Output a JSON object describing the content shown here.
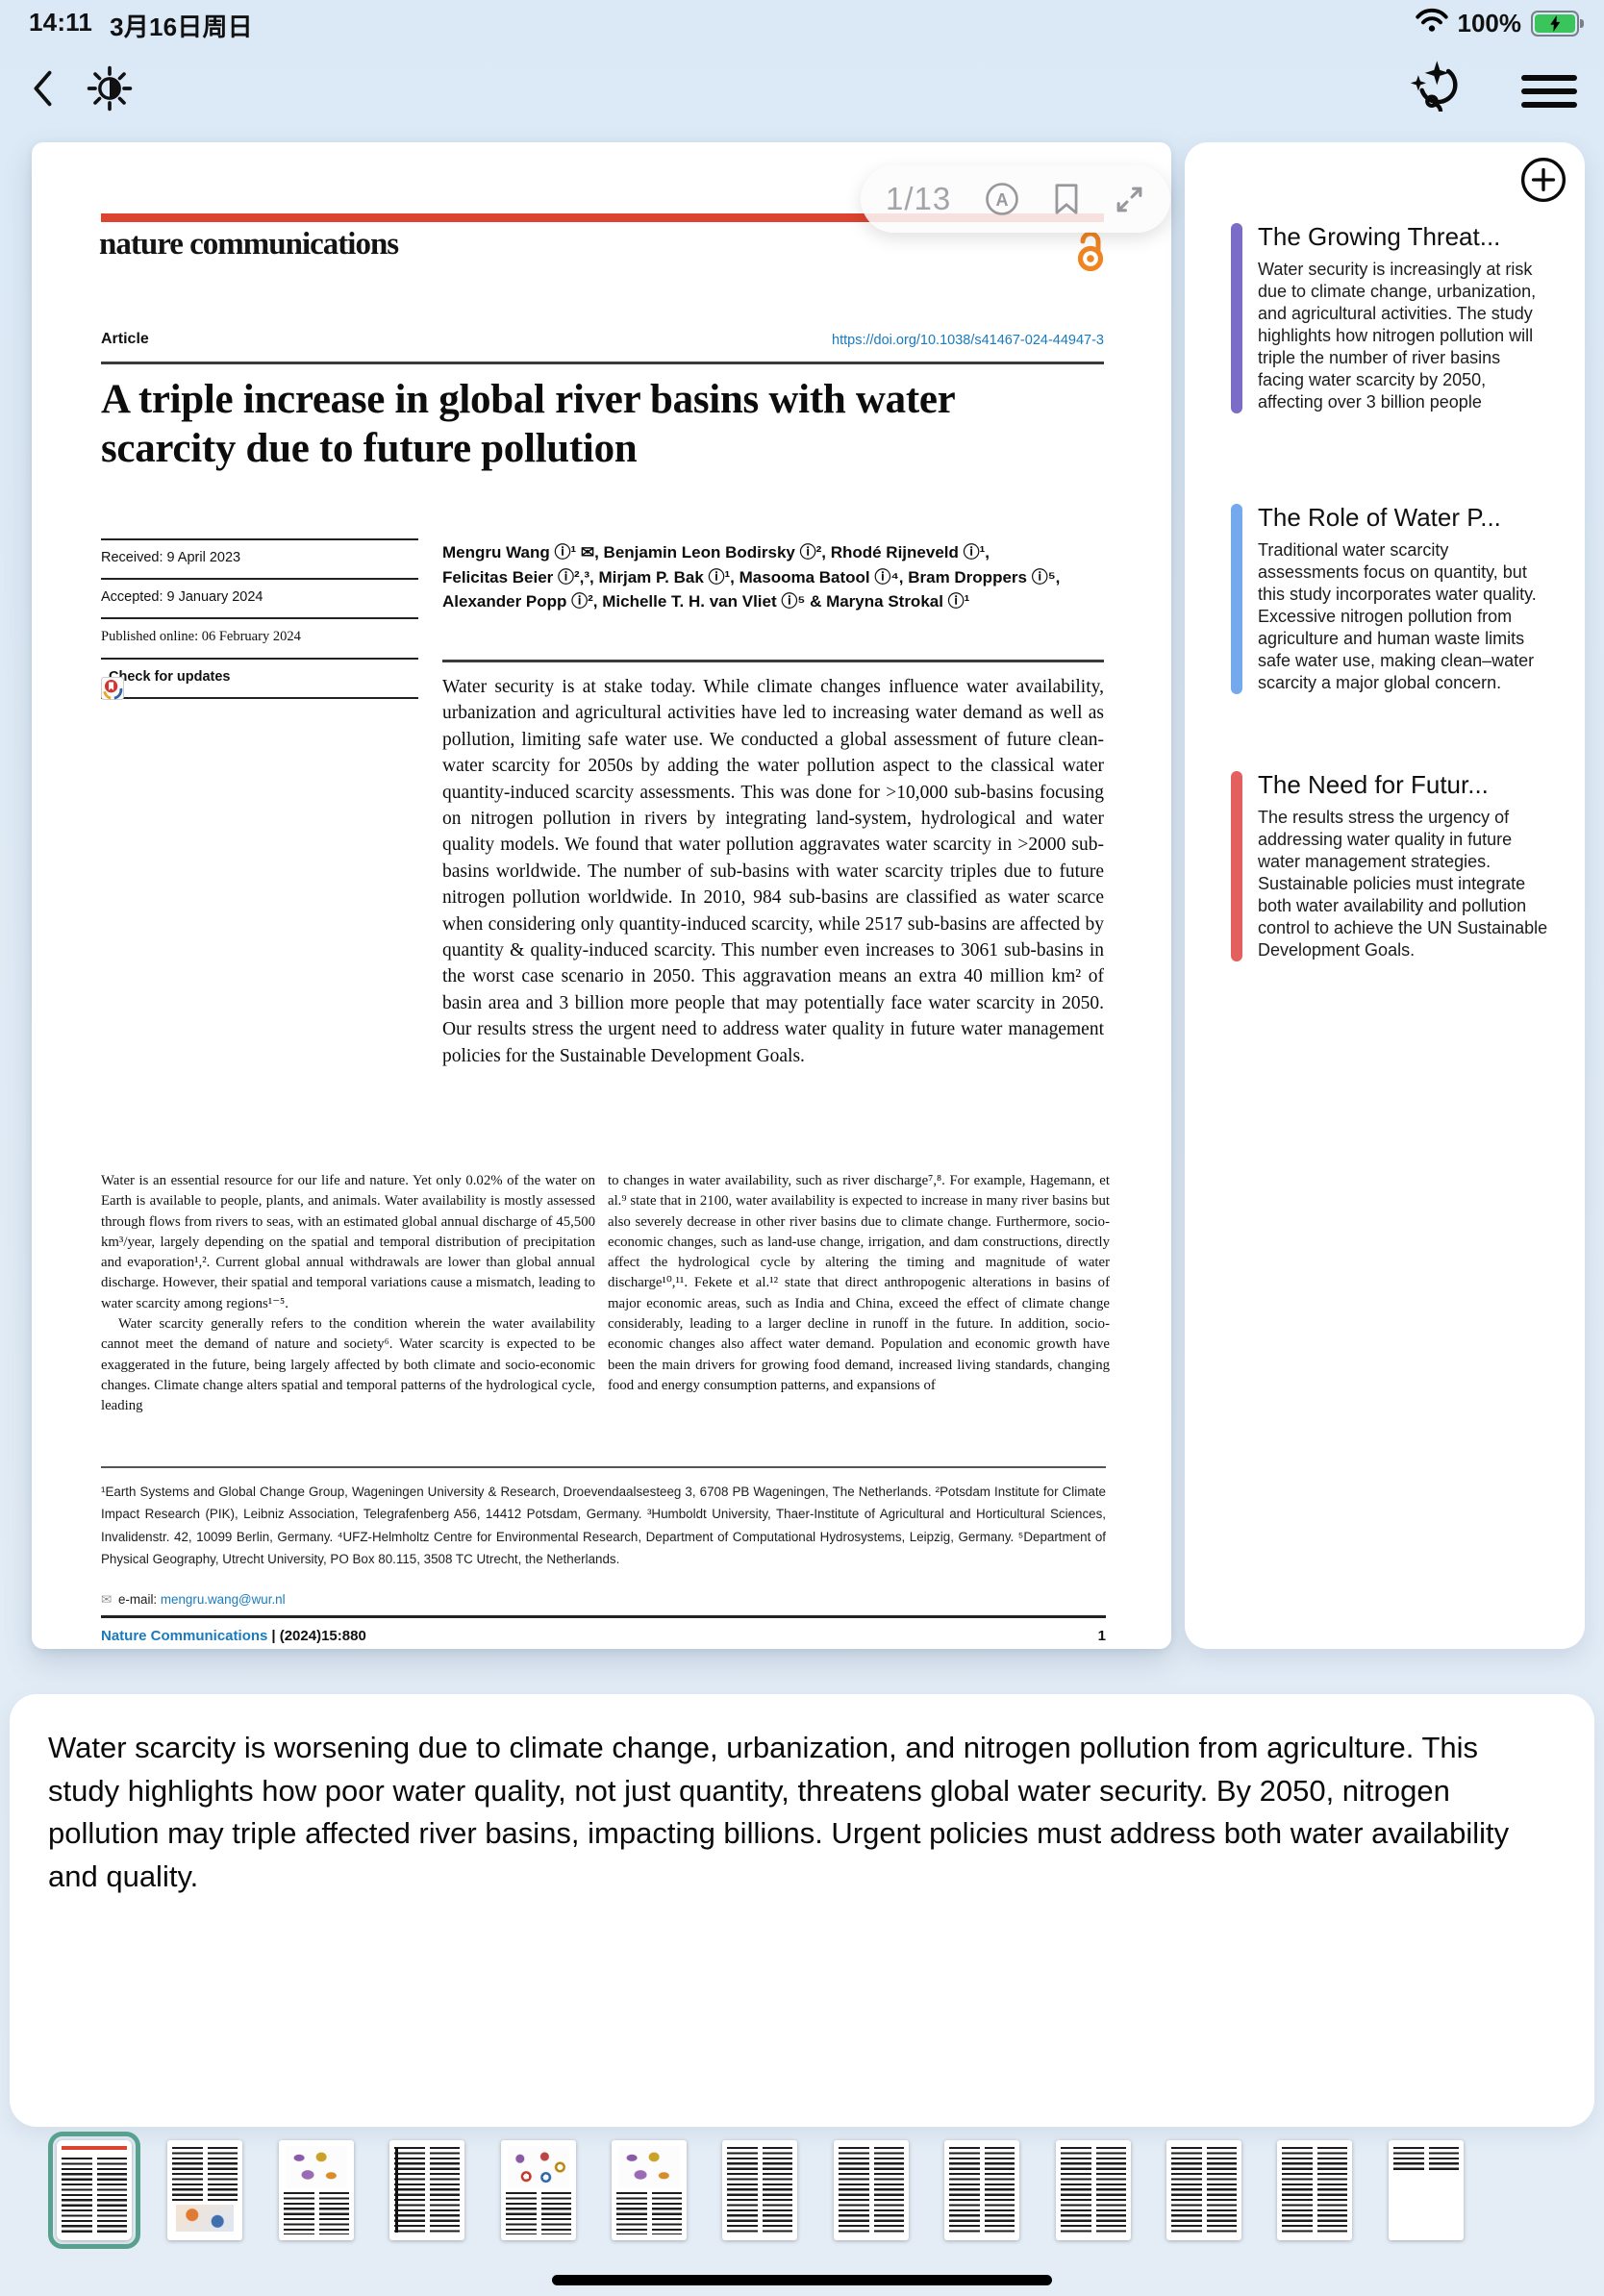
{
  "status_bar": {
    "time": "14:11",
    "date": "3月16日周日",
    "battery_percent": "100%"
  },
  "toolbar": {
    "page_indicator": "1/13"
  },
  "icons": {
    "envelope": "✉"
  },
  "colors": {
    "brand_red": "#dc4330",
    "link_blue": "#1a7abc",
    "oa_orange": "#ef8423",
    "battery_green": "#3cc45c",
    "thumb_selected": "#58a18f",
    "accent_purple": "#7b6cc8",
    "accent_blue": "#74a9ee",
    "accent_red": "#e4605e"
  },
  "paper": {
    "journal_logo": "nature communications",
    "article_label": "Article",
    "doi": "https://doi.org/10.1038/s41467-024-44947-3",
    "title": "A triple increase in global river basins with water scarcity due to future pollution",
    "received": "Received: 9 April 2023",
    "accepted": "Accepted: 9 January 2024",
    "published": "Published online: 06 February 2024",
    "check_for_updates": "Check for updates",
    "authors": "Mengru Wang ⓘ¹ ✉, Benjamin Leon Bodirsky ⓘ², Rhodé Rijneveld ⓘ¹,\nFelicitas Beier ⓘ²,³, Mirjam P. Bak ⓘ¹, Masooma Batool ⓘ⁴, Bram Droppers ⓘ⁵,\nAlexander Popp ⓘ², Michelle T. H. van Vliet ⓘ⁵ & Maryna Strokal ⓘ¹",
    "abstract": "Water security is at stake today. While climate changes influence water availability, urbanization and agricultural activities have led to increasing water demand as well as pollution, limiting safe water use. We conducted a global assessment of future clean-water scarcity for 2050s by adding the water pollution aspect to the classical water quantity-induced scarcity assessments. This was done for >10,000 sub-basins focusing on nitrogen pollution in rivers by integrating land-system, hydrological and water quality models. We found that water pollution aggravates water scarcity in >2000 sub-basins worldwide. The number of sub-basins with water scarcity triples due to future nitrogen pollution worldwide. In 2010, 984 sub-basins are classified as water scarce when considering only quantity-induced scarcity, while 2517 sub-basins are affected by quantity & quality-induced scarcity. This number even increases to 3061 sub-basins in the worst case scenario in 2050. This aggravation means an extra 40 million km² of basin area and 3 billion more people that may potentially face water scarcity in 2050. Our results stress the urgent need to address water quality in future water management policies for the Sustainable Development Goals.",
    "body_col1_p1": "Water is an essential resource for our life and nature. Yet only 0.02% of the water on Earth is available to people, plants, and animals. Water availability is mostly assessed through flows from rivers to seas, with an estimated global annual discharge of 45,500 km³/year, largely depending on the spatial and temporal distribution of precipitation and evaporation¹,². Current global annual withdrawals are lower than global annual discharge. However, their spatial and temporal variations cause a mismatch, leading to water scarcity among regions¹⁻⁵.",
    "body_col1_p2": "Water scarcity generally refers to the condition wherein the water availability cannot meet the demand of nature and society⁶. Water scarcity is expected to be exaggerated in the future, being largely affected by both climate and socio-economic changes. Climate change alters spatial and temporal patterns of the hydrological cycle, leading",
    "body_col2": "to changes in water availability, such as river discharge⁷,⁸. For example, Hagemann, et al.⁹ state that in 2100, water availability is expected to increase in many river basins but also severely decrease in other river basins due to climate change. Furthermore, socio-economic changes, such as land-use change, irrigation, and dam constructions, directly affect the hydrological cycle by altering the timing and magnitude of water discharge¹⁰,¹¹. Fekete et al.¹² state that direct anthropogenic alterations in basins of major economic areas, such as India and China, exceed the effect of climate change considerably, leading to a larger decline in runoff in the future. In addition, socio-economic changes also affect water demand. Population and economic growth have been the main drivers for growing food demand, increased living standards, changing food and energy consumption patterns, and expansions of",
    "affiliations": "¹Earth Systems and Global Change Group, Wageningen University & Research, Droevendaalsesteeg 3, 6708 PB Wageningen, The Netherlands. ²Potsdam Institute for Climate Impact Research (PIK), Leibniz Association, Telegrafenberg A56, 14412 Potsdam, Germany. ³Humboldt University, Thaer-Institute of Agricultural and Horticultural Sciences, Invalidenstr. 42, 10099 Berlin, Germany. ⁴UFZ-Helmholtz Centre for Environmental Research, Department of Computational Hydrosystems, Leipzig, Germany. ⁵Department of Physical Geography, Utrecht University, PO Box 80.115, 3508 TC Utrecht, the Netherlands.",
    "email_label": "e-mail: ",
    "email": "mengru.wang@wur.nl",
    "footer_journal": "Nature Communications",
    "footer_citation": "| (2024)15:880",
    "footer_page": "1"
  },
  "sidebar": {
    "cards": [
      {
        "accent": "#7b6cc8",
        "title": "The Growing Threat...",
        "body": "Water security is increasingly at risk due to climate change, urbanization, and agricultural activities. The study highlights how nitrogen pollution will triple the number of river basins facing water scarcity by 2050, affecting over 3 billion people"
      },
      {
        "accent": "#74a9ee",
        "title": "The Role of Water P...",
        "body": "Traditional water scarcity assessments focus on quantity, but this study incorporates water quality. Excessive nitrogen pollution from agriculture and human waste limits safe water use, making clean–water scarcity a major global concern."
      },
      {
        "accent": "#e4605e",
        "title": "The Need for Futur...",
        "body": "The results stress the urgency of addressing water quality in future water management strategies. Sustainable policies must integrate both water availability and pollution control to achieve the UN Sustainable Development Goals."
      }
    ]
  },
  "summary": {
    "text": "Water scarcity is worsening due to climate change, urbanization, and nitrogen pollution from agriculture. This study highlights how poor water quality, not just quantity, threatens global water security. By 2050, nitrogen pollution may triple affected river basins, impacting billions. Urgent policies must address both water availability and quality."
  },
  "thumbnails": {
    "count": 13,
    "selected_page": 1,
    "pages": [
      {
        "page": 1,
        "variant": "title"
      },
      {
        "page": 2,
        "variant": "diagram"
      },
      {
        "page": 3,
        "variant": "maps"
      },
      {
        "page": 4,
        "variant": "table"
      },
      {
        "page": 5,
        "variant": "rings"
      },
      {
        "page": 6,
        "variant": "maps"
      },
      {
        "page": 7,
        "variant": "text"
      },
      {
        "page": 8,
        "variant": "text"
      },
      {
        "page": 9,
        "variant": "text"
      },
      {
        "page": 10,
        "variant": "text"
      },
      {
        "page": 11,
        "variant": "text"
      },
      {
        "page": 12,
        "variant": "text"
      },
      {
        "page": 13,
        "variant": "blank"
      }
    ]
  }
}
